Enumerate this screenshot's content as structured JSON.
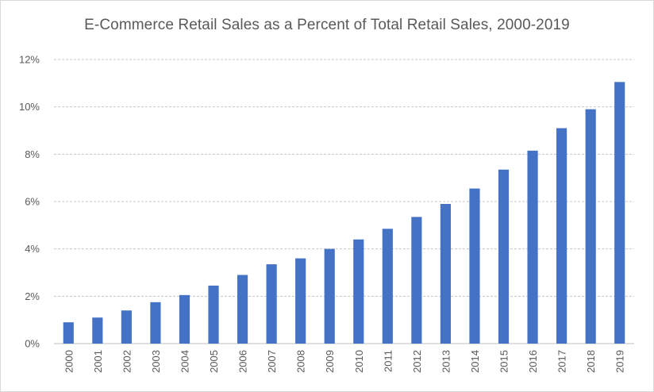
{
  "chart_data": {
    "type": "bar",
    "title": "E-Commerce Retail Sales as a Percent of Total Retail Sales, 2000-2019",
    "xlabel": "",
    "ylabel": "",
    "categories": [
      "2000",
      "2001",
      "2002",
      "2003",
      "2004",
      "2005",
      "2006",
      "2007",
      "2008",
      "2009",
      "2010",
      "2011",
      "2012",
      "2013",
      "2014",
      "2015",
      "2016",
      "2017",
      "2018",
      "2019"
    ],
    "values": [
      0.9,
      1.1,
      1.4,
      1.75,
      2.05,
      2.45,
      2.9,
      3.35,
      3.6,
      4.0,
      4.4,
      4.85,
      5.35,
      5.9,
      6.55,
      7.35,
      8.15,
      9.1,
      9.9,
      11.05
    ],
    "ylim": [
      0,
      12
    ],
    "yticks": [
      "0%",
      "2%",
      "4%",
      "6%",
      "8%",
      "10%",
      "12%"
    ],
    "grid": true,
    "legend": "none",
    "bar_color": "#4472C4",
    "grid_color": "#c8c8c8",
    "axis_color": "#bfbfbf"
  }
}
